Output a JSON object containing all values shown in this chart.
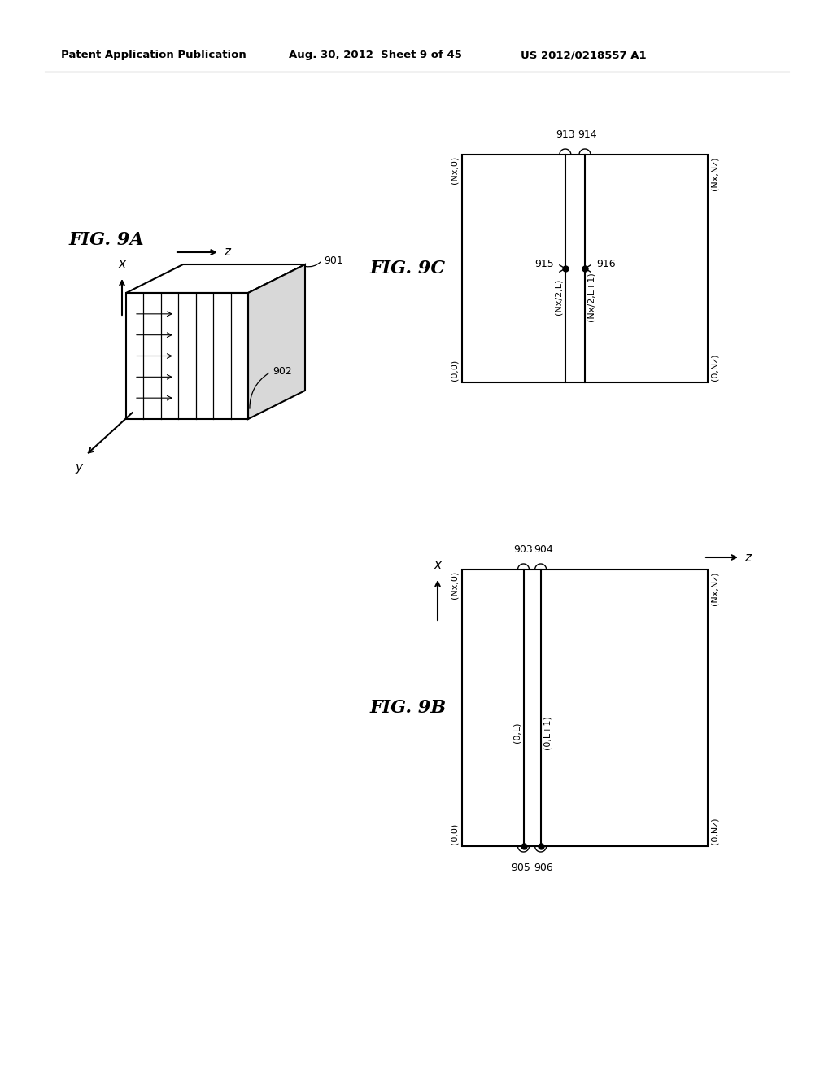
{
  "bg_color": "#ffffff",
  "header_text": "Patent Application Publication",
  "header_date": "Aug. 30, 2012  Sheet 9 of 45",
  "header_patent": "US 2012/0218557 A1"
}
